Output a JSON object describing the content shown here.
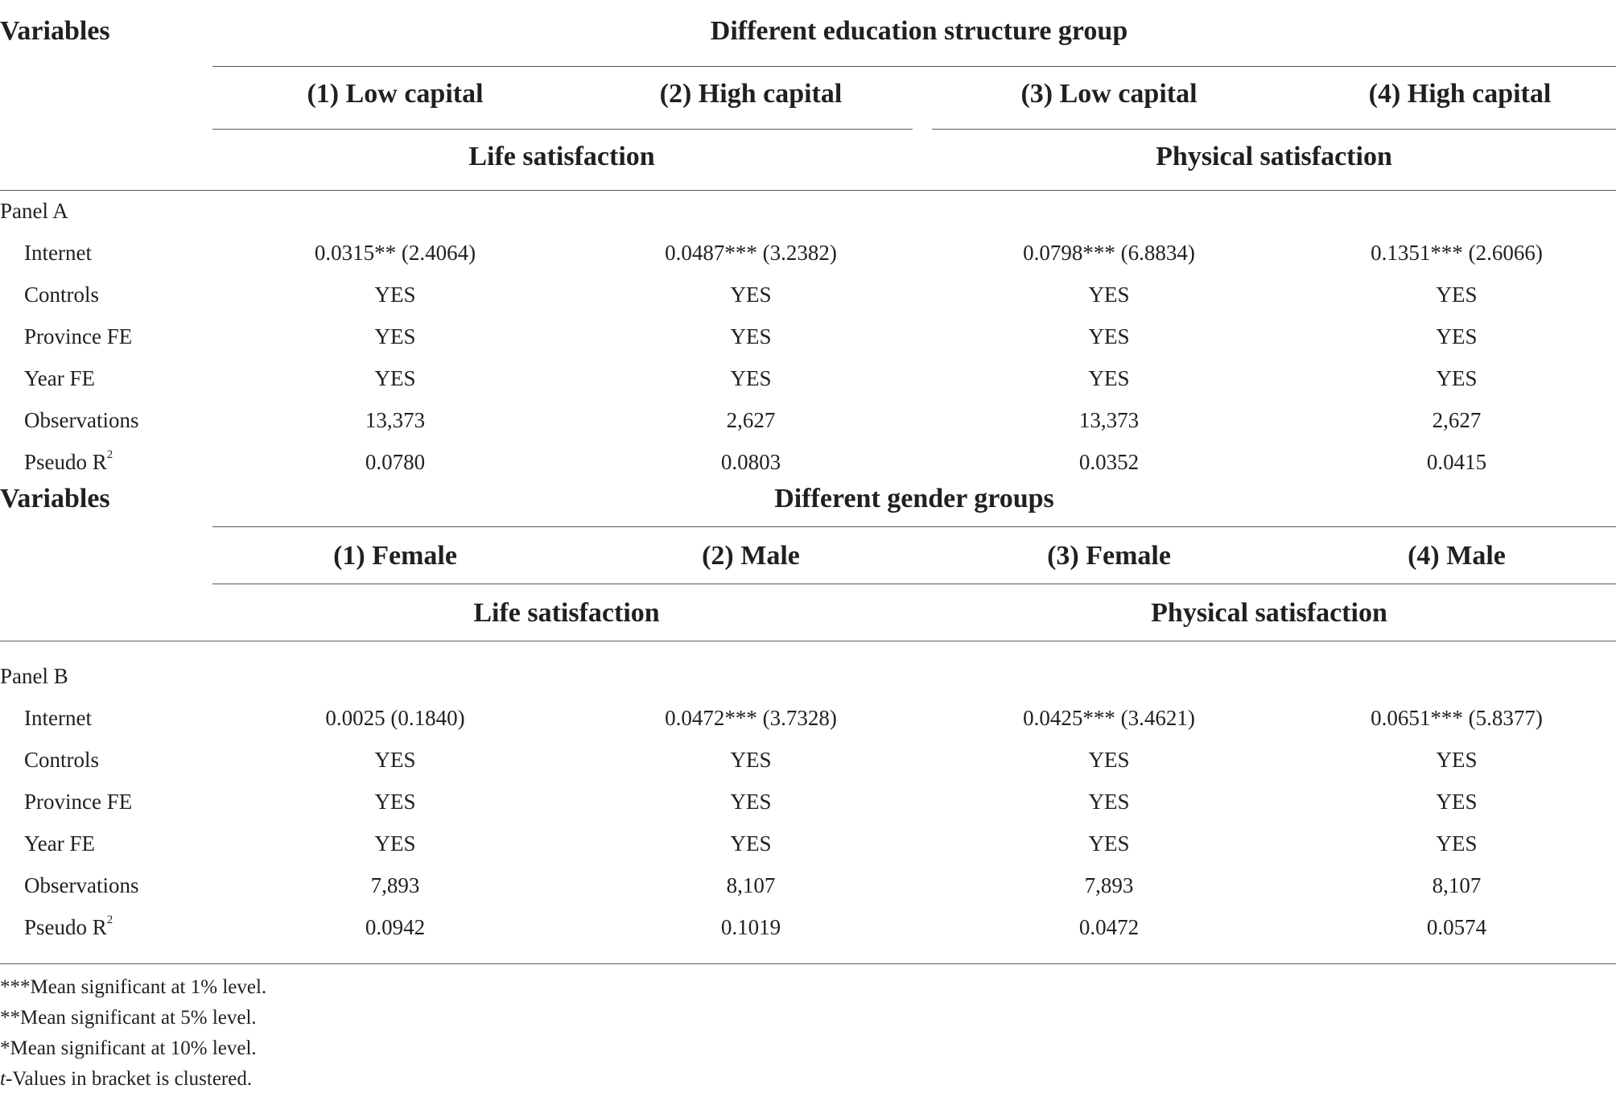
{
  "panel_a": {
    "variables_label": "Variables",
    "group_title": "Different education structure group",
    "columns": [
      "(1) Low capital",
      "(2) High capital",
      "(3) Low capital",
      "(4) High capital"
    ],
    "outcome_left": "Life satisfaction",
    "outcome_right": "Physical satisfaction",
    "panel_label": "Panel A",
    "rows": [
      {
        "label": "Internet",
        "cells": [
          "0.0315** (2.4064)",
          "0.0487*** (3.2382)",
          "0.0798*** (6.8834)",
          "0.1351*** (2.6066)"
        ]
      },
      {
        "label": "Controls",
        "cells": [
          "YES",
          "YES",
          "YES",
          "YES"
        ]
      },
      {
        "label": "Province FE",
        "cells": [
          "YES",
          "YES",
          "YES",
          "YES"
        ]
      },
      {
        "label": "Year FE",
        "cells": [
          "YES",
          "YES",
          "YES",
          "YES"
        ]
      },
      {
        "label": "Observations",
        "cells": [
          "13,373",
          "2,627",
          "13,373",
          "2,627"
        ]
      },
      {
        "label": "Pseudo R",
        "sup": "2",
        "cells": [
          "0.0780",
          "0.0803",
          "0.0352",
          "0.0415"
        ]
      }
    ]
  },
  "panel_b": {
    "variables_label": "Variables",
    "group_title": "Different gender groups",
    "columns": [
      "(1) Female",
      "(2) Male",
      "(3) Female",
      "(4) Male"
    ],
    "outcome_left": "Life satisfaction",
    "outcome_right": "Physical satisfaction",
    "panel_label": "Panel B",
    "rows": [
      {
        "label": "Internet",
        "cells": [
          "0.0025 (0.1840)",
          "0.0472*** (3.7328)",
          "0.0425*** (3.4621)",
          "0.0651*** (5.8377)"
        ]
      },
      {
        "label": "Controls",
        "cells": [
          "YES",
          "YES",
          "YES",
          "YES"
        ]
      },
      {
        "label": "Province FE",
        "cells": [
          "YES",
          "YES",
          "YES",
          "YES"
        ]
      },
      {
        "label": "Year FE",
        "cells": [
          "YES",
          "YES",
          "YES",
          "YES"
        ]
      },
      {
        "label": "Observations",
        "cells": [
          "7,893",
          "8,107",
          "7,893",
          "8,107"
        ]
      },
      {
        "label": "Pseudo R",
        "sup": "2",
        "cells": [
          "0.0942",
          "0.1019",
          "0.0472",
          "0.0574"
        ]
      }
    ]
  },
  "notes": [
    "***Mean significant at 1% level.",
    "**Mean significant at 5% level.",
    "*Mean significant at 10% level."
  ],
  "note_t_italic": "t",
  "note_t_rest": "-Values in bracket is clustered."
}
